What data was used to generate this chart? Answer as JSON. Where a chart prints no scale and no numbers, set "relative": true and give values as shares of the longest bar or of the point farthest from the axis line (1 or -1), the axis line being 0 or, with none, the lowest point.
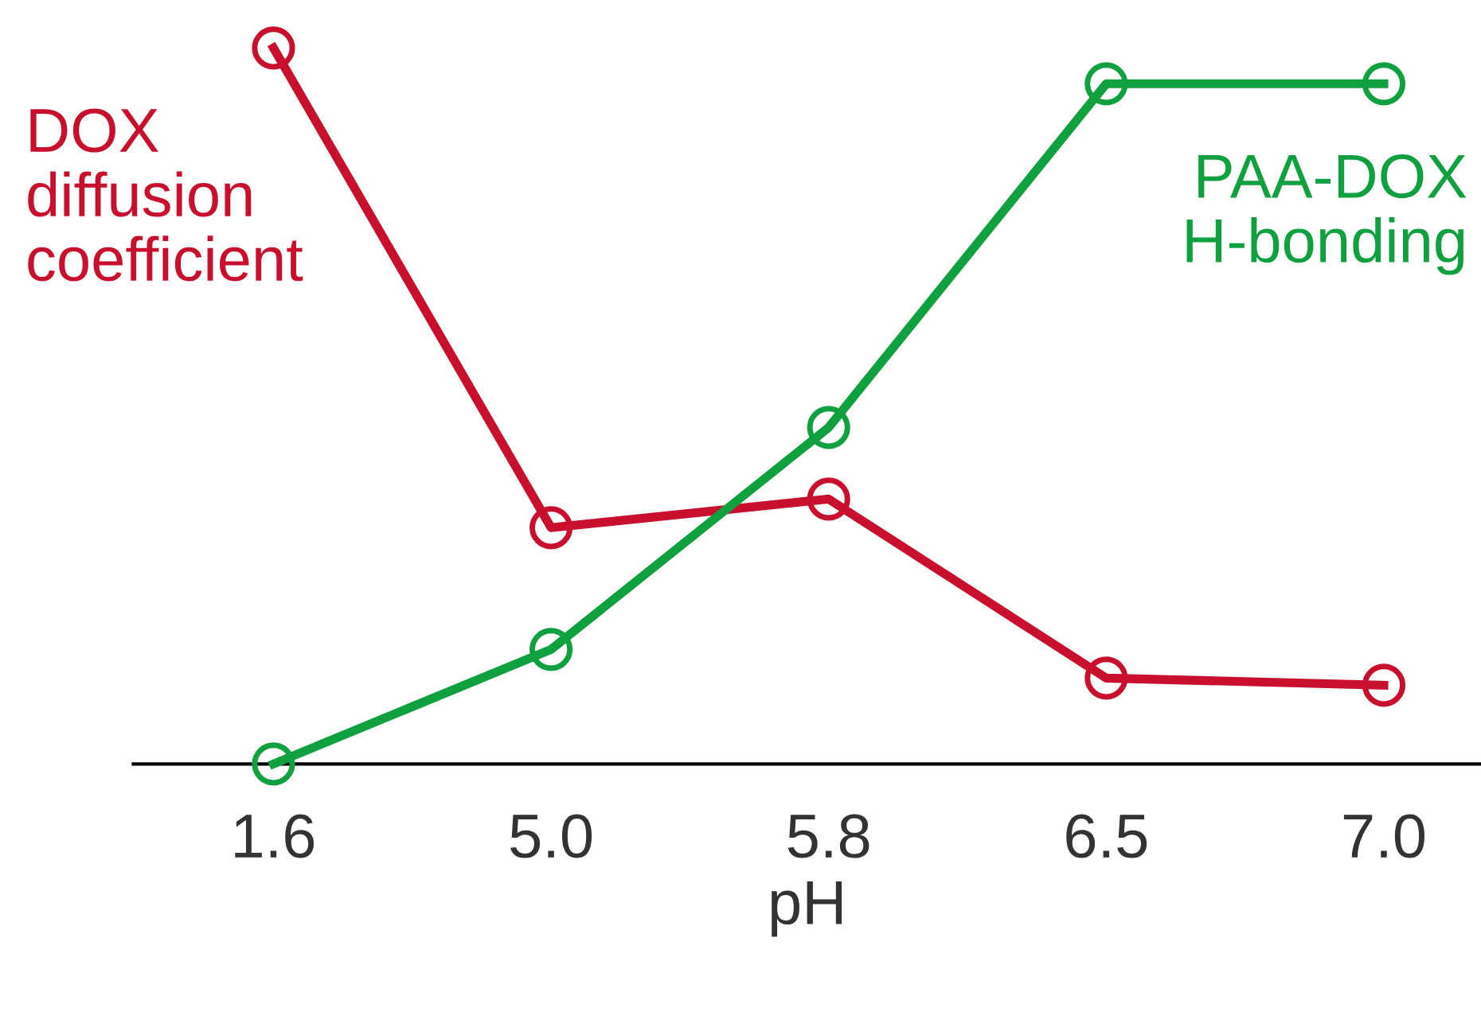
{
  "chart_data": {
    "type": "line",
    "relative": true,
    "xlabel": "pH",
    "marker": "circle",
    "line_style": "solid",
    "grid": false,
    "legend": false,
    "categories": [
      "1.6",
      "5.0",
      "5.8",
      "6.5",
      "7.0"
    ],
    "series": [
      {
        "name": "DOX\ndiffusion\ncoefficient",
        "color": "#c8102e",
        "values": [
          1.0,
          0.33,
          0.37,
          0.12,
          0.11
        ]
      },
      {
        "name": "PAA-DOX\nH-bonding",
        "color": "#10a040",
        "values": [
          0.0,
          0.16,
          0.47,
          0.95,
          0.95
        ]
      }
    ]
  }
}
